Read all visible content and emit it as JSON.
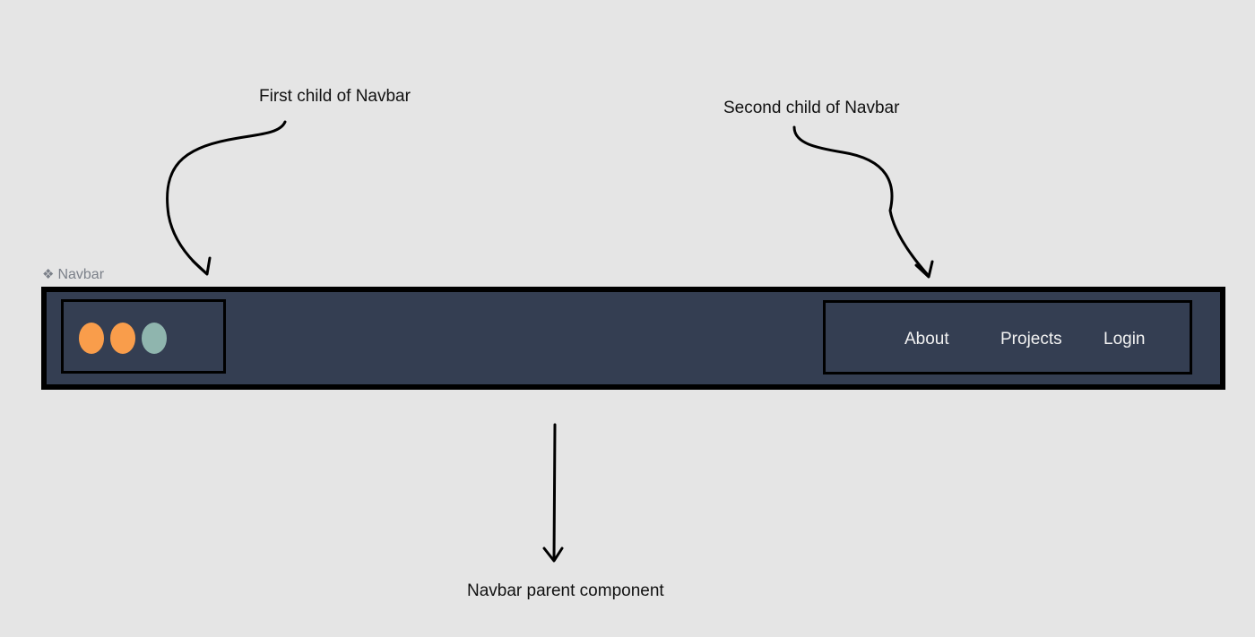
{
  "annotations": {
    "first_child": "First child of Navbar",
    "second_child": "Second child of Navbar",
    "parent": "Navbar parent component"
  },
  "component": {
    "glyph": "❖",
    "name": "Navbar"
  },
  "navbar": {
    "background": "#343e52",
    "border_color": "#000000",
    "logo_dots": [
      {
        "color": "#f99d4b"
      },
      {
        "color": "#f99d4b"
      },
      {
        "color": "#8fb5ae"
      }
    ],
    "links": [
      "About",
      "Projects",
      "Login"
    ]
  }
}
